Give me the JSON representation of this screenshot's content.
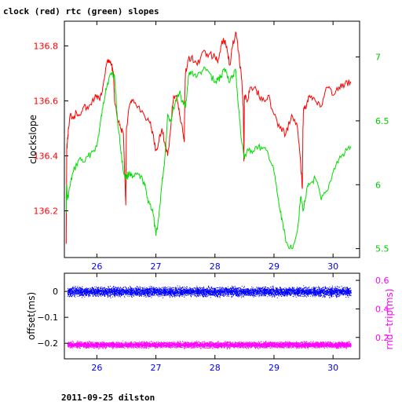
{
  "page": {
    "title": "clock (red) rtc (green) slopes",
    "footer": "2011-09-25 dilston"
  },
  "colors": {
    "clock": "#ff0000",
    "rtc": "#00dd00",
    "offset": "#0000ff",
    "roundtrip": "#ff00ff",
    "xtick": "#0000ff",
    "left_tick": "#ff0000",
    "right_tick": "#00cc00",
    "frame": "#000000"
  },
  "chart_data": [
    {
      "type": "line",
      "title": "clock (red) rtc (green) slopes",
      "ylabel": "clockslope",
      "xlim": [
        25.45,
        30.45
      ],
      "ylim": [
        136.03,
        136.89
      ],
      "y2lim": [
        5.43,
        7.28
      ],
      "x_ticks": [
        26,
        27,
        28,
        29,
        30
      ],
      "y_ticks": [
        136.2,
        136.4,
        136.6,
        136.8
      ],
      "y2_ticks": [
        5.5,
        6,
        6.5,
        7
      ],
      "x_tick_labels": [
        "26",
        "27",
        "28",
        "29",
        "30"
      ],
      "y_tick_labels": [
        "136.2",
        "136.4",
        "136.6",
        "136.8"
      ],
      "y2_tick_labels": [
        "5.5",
        "6",
        "6.5",
        "7"
      ],
      "series": [
        {
          "axis": "left",
          "x": [
            25.48,
            25.49,
            25.5,
            25.52,
            25.55,
            25.6,
            25.65,
            25.7,
            25.78,
            25.85,
            25.92,
            26.0,
            26.05,
            26.1,
            26.15,
            26.2,
            26.25,
            26.28,
            26.3,
            26.35,
            26.4,
            26.45,
            26.48,
            26.49,
            26.5,
            26.55,
            26.6,
            26.7,
            26.8,
            26.9,
            26.95,
            27.0,
            27.05,
            27.1,
            27.15,
            27.2,
            27.25,
            27.28,
            27.3,
            27.35,
            27.4,
            27.45,
            27.48,
            27.49,
            27.5,
            27.55,
            27.6,
            27.7,
            27.8,
            27.9,
            28.0,
            28.05,
            28.1,
            28.15,
            28.2,
            28.25,
            28.3,
            28.35,
            28.4,
            28.45,
            28.48,
            28.49,
            28.5,
            28.55,
            28.6,
            28.7,
            28.8,
            28.9,
            29.0,
            29.1,
            29.2,
            29.3,
            29.4,
            29.45,
            29.48,
            29.49,
            29.5,
            29.55,
            29.6,
            29.7,
            29.8,
            29.9,
            30.0,
            30.1,
            30.2,
            30.3
          ],
          "y": [
            136.08,
            136.42,
            136.45,
            136.5,
            136.55,
            136.54,
            136.56,
            136.55,
            136.58,
            136.57,
            136.6,
            136.62,
            136.6,
            136.65,
            136.72,
            136.75,
            136.73,
            136.7,
            136.6,
            136.53,
            136.5,
            136.48,
            136.28,
            136.22,
            136.5,
            136.58,
            136.6,
            136.58,
            136.55,
            136.52,
            136.48,
            136.42,
            136.45,
            136.5,
            136.45,
            136.4,
            136.5,
            136.58,
            136.62,
            136.62,
            136.55,
            136.5,
            136.45,
            136.62,
            136.7,
            136.75,
            136.76,
            136.73,
            136.78,
            136.77,
            136.76,
            136.74,
            136.8,
            136.82,
            136.8,
            136.73,
            136.8,
            136.85,
            136.78,
            136.68,
            136.58,
            136.38,
            136.62,
            136.6,
            136.65,
            136.64,
            136.6,
            136.62,
            136.55,
            136.5,
            136.48,
            136.55,
            136.5,
            136.38,
            136.28,
            136.5,
            136.57,
            136.58,
            136.62,
            136.6,
            136.58,
            136.65,
            136.62,
            136.65,
            136.66,
            136.67
          ]
        },
        {
          "axis": "right",
          "x": [
            25.48,
            25.49,
            25.5,
            25.55,
            25.6,
            25.7,
            25.8,
            25.9,
            26.0,
            26.05,
            26.1,
            26.15,
            26.2,
            26.25,
            26.3,
            26.35,
            26.4,
            26.45,
            26.5,
            26.55,
            26.6,
            26.7,
            26.8,
            26.85,
            26.9,
            26.95,
            27.0,
            27.05,
            27.1,
            27.15,
            27.2,
            27.25,
            27.3,
            27.35,
            27.4,
            27.45,
            27.5,
            27.55,
            27.6,
            27.7,
            27.8,
            27.9,
            28.0,
            28.05,
            28.1,
            28.15,
            28.2,
            28.25,
            28.3,
            28.35,
            28.4,
            28.45,
            28.5,
            28.55,
            28.6,
            28.7,
            28.8,
            28.9,
            29.0,
            29.05,
            29.1,
            29.15,
            29.2,
            29.3,
            29.4,
            29.45,
            29.5,
            29.55,
            29.6,
            29.7,
            29.8,
            29.9,
            30.0,
            30.1,
            30.2,
            30.3
          ],
          "y": [
            5.78,
            6.0,
            5.88,
            6.0,
            6.1,
            6.2,
            6.18,
            6.25,
            6.3,
            6.45,
            6.6,
            6.75,
            6.82,
            6.88,
            6.85,
            6.5,
            6.3,
            6.1,
            6.05,
            6.1,
            6.05,
            6.08,
            6.02,
            5.9,
            5.85,
            5.78,
            5.6,
            5.75,
            6.0,
            6.2,
            6.55,
            6.5,
            6.6,
            6.68,
            6.72,
            6.65,
            6.6,
            6.85,
            6.88,
            6.85,
            6.9,
            6.88,
            6.8,
            6.82,
            6.85,
            6.9,
            6.88,
            6.8,
            6.85,
            6.9,
            6.6,
            6.35,
            6.2,
            6.28,
            6.25,
            6.3,
            6.28,
            6.25,
            6.1,
            5.95,
            5.8,
            5.7,
            5.55,
            5.5,
            5.65,
            5.9,
            5.8,
            5.95,
            6.0,
            6.05,
            5.88,
            5.95,
            6.1,
            6.2,
            6.25,
            6.3
          ]
        }
      ]
    },
    {
      "type": "scatter",
      "ylabel": "offset(ms)",
      "y2label": "rnd−trip(ms)",
      "xlim": [
        25.45,
        30.45
      ],
      "ylim": [
        -0.26,
        0.07
      ],
      "y2lim": [
        0.05,
        0.65
      ],
      "x_ticks": [
        26,
        27,
        28,
        29,
        30
      ],
      "y_ticks": [
        0,
        -0.1,
        -0.2
      ],
      "y2_ticks": [
        0.2,
        0.4,
        0.6
      ],
      "x_tick_labels": [
        "26",
        "27",
        "28",
        "29",
        "30"
      ],
      "y_tick_labels": [
        "0",
        "−0.1",
        "−0.2"
      ],
      "y2_tick_labels": [
        "0.2",
        "0.4",
        "0.6"
      ],
      "series": [
        {
          "axis": "left",
          "x_range": [
            25.5,
            30.3
          ],
          "center": 0.0,
          "spread": 0.025
        },
        {
          "axis": "right",
          "x_range": [
            25.5,
            30.3
          ],
          "center": 0.15,
          "spread": 0.03
        }
      ]
    }
  ]
}
